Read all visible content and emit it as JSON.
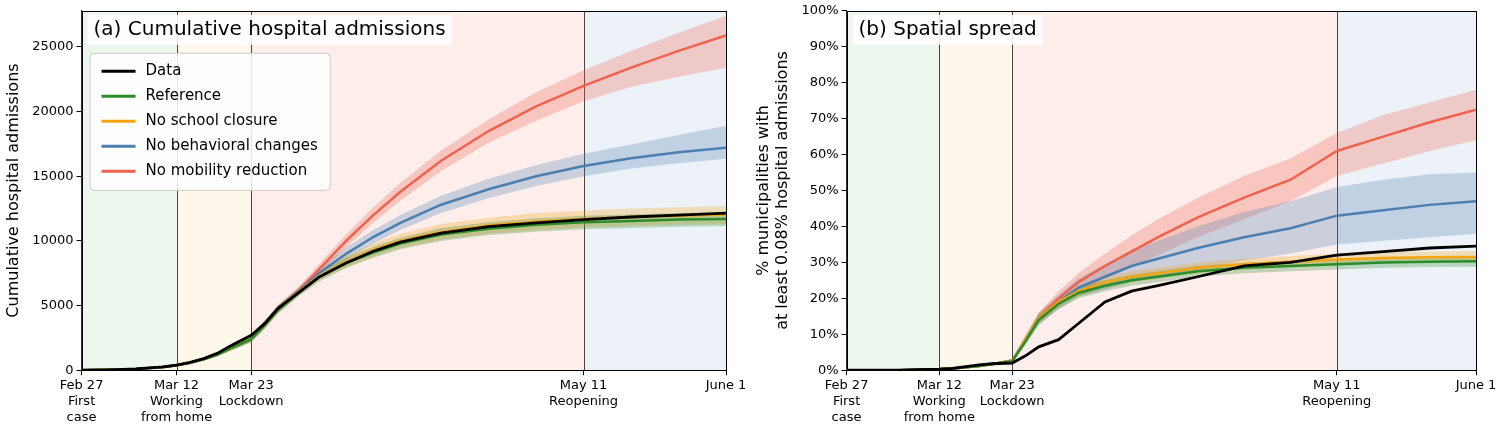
{
  "chart_data": [
    {
      "type": "line",
      "title": "(a) Cumulative hospital admissions",
      "y_label": "Cumulative hospital admissions",
      "x": [
        0,
        4,
        8,
        12,
        14,
        16,
        18,
        20,
        22,
        25,
        27,
        29,
        32,
        35,
        39,
        43,
        47,
        53,
        60,
        67,
        74,
        81,
        88,
        95
      ],
      "xlim": [
        0,
        95
      ],
      "xticks": [
        {
          "value": 0,
          "label": "Feb 27\nFirst\ncase"
        },
        {
          "value": 14,
          "label": "Mar 12\nWorking\nfrom home"
        },
        {
          "value": 25,
          "label": "Mar 23\nLockdown"
        },
        {
          "value": 74,
          "label": "May 11\nReopening"
        },
        {
          "value": 95,
          "label": "June 1"
        }
      ],
      "ylim": [
        0,
        27800
      ],
      "yticks": [
        0,
        5000,
        10000,
        15000,
        20000,
        25000
      ],
      "grid": false,
      "legend": "upper left",
      "vlines": [
        14,
        25,
        74
      ],
      "phases": [
        {
          "from": 0,
          "to": 14,
          "color": "#eef7ee"
        },
        {
          "from": 14,
          "to": 25,
          "color": "#fdf7ec"
        },
        {
          "from": 25,
          "to": 74,
          "color": "#fdeeec"
        },
        {
          "from": 74,
          "to": 95,
          "color": "#edf2f8"
        }
      ],
      "series": [
        {
          "name": "Data",
          "color": "#000000",
          "values": [
            0,
            30,
            100,
            250,
            400,
            600,
            900,
            1300,
            1900,
            2700,
            3600,
            4800,
            6000,
            7200,
            8300,
            9200,
            9900,
            10600,
            11100,
            11400,
            11650,
            11850,
            12000,
            12150
          ]
        },
        {
          "name": "Reference",
          "color": "#2a8c2a",
          "values": [
            0,
            30,
            90,
            230,
            380,
            570,
            850,
            1200,
            1700,
            2400,
            3500,
            4700,
            6000,
            7200,
            8300,
            9100,
            9800,
            10500,
            10950,
            11250,
            11450,
            11550,
            11650,
            11700
          ],
          "lower": [
            0,
            20,
            70,
            190,
            320,
            490,
            740,
            1050,
            1500,
            2150,
            3200,
            4400,
            5700,
            6850,
            7900,
            8700,
            9350,
            10000,
            10450,
            10700,
            10900,
            11000,
            11100,
            11150
          ],
          "upper": [
            0,
            40,
            110,
            270,
            440,
            650,
            960,
            1350,
            1900,
            2650,
            3800,
            5000,
            6300,
            7550,
            8700,
            9550,
            10250,
            11000,
            11450,
            11750,
            11950,
            12050,
            12150,
            12200
          ]
        },
        {
          "name": "No school closure",
          "color": "#f5a511",
          "values": [
            0,
            30,
            95,
            240,
            390,
            580,
            860,
            1220,
            1730,
            2450,
            3550,
            4750,
            6050,
            7300,
            8400,
            9300,
            10000,
            10700,
            11200,
            11500,
            11700,
            11850,
            11950,
            12050
          ],
          "lower": [
            0,
            20,
            75,
            200,
            330,
            500,
            750,
            1070,
            1530,
            2200,
            3250,
            4450,
            5750,
            6950,
            7950,
            8800,
            9450,
            10100,
            10550,
            10850,
            11050,
            11150,
            11250,
            11300
          ],
          "upper": [
            0,
            40,
            115,
            280,
            450,
            660,
            970,
            1370,
            1930,
            2700,
            3850,
            5050,
            6350,
            7650,
            8850,
            9800,
            10550,
            11300,
            11800,
            12150,
            12350,
            12500,
            12600,
            12700
          ]
        },
        {
          "name": "No behavioral changes",
          "color": "#4a7fb0",
          "values": [
            0,
            30,
            95,
            240,
            390,
            580,
            860,
            1220,
            1730,
            2450,
            3550,
            4750,
            6100,
            7500,
            9000,
            10300,
            11400,
            12800,
            14000,
            15000,
            15800,
            16400,
            16850,
            17200
          ],
          "lower": [
            0,
            20,
            75,
            200,
            330,
            500,
            750,
            1070,
            1530,
            2200,
            3250,
            4450,
            5800,
            7100,
            8550,
            9800,
            10850,
            12150,
            13300,
            14250,
            15000,
            15600,
            16000,
            16350
          ],
          "upper": [
            0,
            40,
            115,
            280,
            450,
            660,
            970,
            1370,
            1930,
            2700,
            3850,
            5050,
            6400,
            7900,
            9500,
            10850,
            12000,
            13500,
            14800,
            15850,
            16750,
            17450,
            18200,
            18900
          ]
        },
        {
          "name": "No mobility reduction",
          "color": "#f0624d",
          "values": [
            0,
            30,
            95,
            240,
            390,
            580,
            860,
            1220,
            1730,
            2450,
            3550,
            4750,
            6150,
            7800,
            10000,
            12000,
            13800,
            16200,
            18500,
            20400,
            22000,
            23400,
            24700,
            25900
          ],
          "lower": [
            0,
            20,
            75,
            200,
            330,
            500,
            750,
            1070,
            1530,
            2200,
            3250,
            4450,
            5850,
            7400,
            9500,
            11400,
            13100,
            15400,
            17600,
            19300,
            20800,
            21900,
            22700,
            23400
          ],
          "upper": [
            0,
            40,
            115,
            280,
            450,
            660,
            970,
            1370,
            1930,
            2700,
            3850,
            5050,
            6450,
            8200,
            10500,
            12600,
            14500,
            17000,
            19400,
            21500,
            23200,
            24700,
            26100,
            27400
          ]
        }
      ]
    },
    {
      "type": "line",
      "title": "(b) Spatial spread",
      "y_label": "% municipalities with\nat least 0.08% hospital admissions",
      "x": [
        0,
        4,
        8,
        12,
        14,
        16,
        18,
        20,
        22,
        25,
        27,
        29,
        32,
        35,
        39,
        43,
        47,
        53,
        60,
        67,
        74,
        81,
        88,
        95
      ],
      "xlim": [
        0,
        95
      ],
      "xticks": [
        {
          "value": 0,
          "label": "Feb 27\nFirst\ncase"
        },
        {
          "value": 14,
          "label": "Mar 12\nWorking\nfrom home"
        },
        {
          "value": 25,
          "label": "Mar 23\nLockdown"
        },
        {
          "value": 74,
          "label": "May 11\nReopening"
        },
        {
          "value": 95,
          "label": "June 1"
        }
      ],
      "ylim": [
        0,
        100
      ],
      "yticks": [
        {
          "value": 0,
          "label": "0%"
        },
        {
          "value": 10,
          "label": "10%"
        },
        {
          "value": 20,
          "label": "20%"
        },
        {
          "value": 30,
          "label": "30%"
        },
        {
          "value": 40,
          "label": "40%"
        },
        {
          "value": 50,
          "label": "50%"
        },
        {
          "value": 60,
          "label": "60%"
        },
        {
          "value": 70,
          "label": "70%"
        },
        {
          "value": 80,
          "label": "80%"
        },
        {
          "value": 90,
          "label": "90%"
        },
        {
          "value": 100,
          "label": "100%"
        }
      ],
      "grid": false,
      "vlines": [
        14,
        25,
        74
      ],
      "phases": [
        {
          "from": 0,
          "to": 14,
          "color": "#eef7ee"
        },
        {
          "from": 14,
          "to": 25,
          "color": "#fdf7ec"
        },
        {
          "from": 25,
          "to": 74,
          "color": "#fdeeec"
        },
        {
          "from": 74,
          "to": 95,
          "color": "#edf2f8"
        }
      ],
      "series": [
        {
          "name": "Data",
          "color": "#000000",
          "values": [
            0,
            0,
            0,
            0.2,
            0.3,
            0.5,
            1,
            1.5,
            1.8,
            2,
            4,
            6.5,
            8.5,
            13,
            19,
            22,
            23.5,
            26,
            29,
            30,
            32,
            33,
            34,
            34.5
          ]
        },
        {
          "name": "Reference",
          "color": "#2a8c2a",
          "values": [
            0,
            0,
            0,
            0.2,
            0.3,
            0.5,
            0.8,
            1.2,
            1.7,
            2.5,
            8,
            14,
            18.5,
            21.5,
            23.5,
            25,
            26,
            27.5,
            28.5,
            29,
            29.5,
            30,
            30.2,
            30.3
          ],
          "lower": [
            0,
            0,
            0,
            0.1,
            0.2,
            0.3,
            0.6,
            1,
            1.4,
            2,
            7,
            12.5,
            17,
            20,
            22,
            23.5,
            24.5,
            26,
            27,
            27.5,
            28,
            28.5,
            28.7,
            28.8
          ],
          "upper": [
            0,
            0,
            0,
            0.3,
            0.4,
            0.7,
            1,
            1.5,
            2,
            3,
            9,
            15.5,
            20,
            23,
            25,
            26.5,
            27.5,
            29,
            30,
            30.5,
            31,
            31.5,
            31.7,
            31.8
          ]
        },
        {
          "name": "No school closure",
          "color": "#f5a511",
          "values": [
            0,
            0,
            0,
            0.2,
            0.3,
            0.5,
            0.8,
            1.2,
            1.7,
            2.6,
            8.5,
            14.5,
            19,
            22,
            24.5,
            26,
            27,
            28.5,
            29.5,
            30.2,
            30.8,
            31.2,
            31.4,
            31.5
          ],
          "lower": [
            0,
            0,
            0,
            0.1,
            0.2,
            0.3,
            0.6,
            1,
            1.4,
            2.1,
            7.5,
            13,
            17.5,
            20.5,
            23,
            24.5,
            25.5,
            27,
            28,
            28.7,
            29.3,
            29.7,
            29.9,
            30
          ],
          "upper": [
            0,
            0,
            0,
            0.3,
            0.4,
            0.7,
            1,
            1.5,
            2,
            3.1,
            9.5,
            16,
            20.5,
            23.5,
            26,
            27.5,
            28.5,
            30,
            31,
            31.8,
            32.4,
            32.8,
            33,
            33.2
          ]
        },
        {
          "name": "No behavioral changes",
          "color": "#4a7fb0",
          "values": [
            0,
            0,
            0,
            0.2,
            0.3,
            0.5,
            0.8,
            1.2,
            1.7,
            2.6,
            8.5,
            14.5,
            19,
            23,
            26,
            29,
            31,
            34,
            37,
            39.5,
            43,
            44.5,
            46,
            47
          ],
          "lower": [
            0,
            0,
            0,
            0.1,
            0.2,
            0.3,
            0.6,
            1,
            1.4,
            2.1,
            7.5,
            13,
            17,
            20.5,
            22.5,
            24.5,
            26,
            28,
            30.5,
            32.5,
            35,
            36,
            37,
            38
          ],
          "upper": [
            0,
            0,
            0,
            0.3,
            0.4,
            0.7,
            1,
            1.5,
            2,
            3.1,
            9.5,
            16,
            21,
            25.5,
            29.5,
            33.5,
            36,
            40,
            44,
            47,
            51,
            53,
            54.5,
            55
          ]
        },
        {
          "name": "No mobility reduction",
          "color": "#f0624d",
          "values": [
            0,
            0,
            0,
            0.2,
            0.3,
            0.5,
            0.8,
            1.2,
            1.7,
            2.6,
            8.5,
            14.5,
            20,
            24.5,
            29,
            33,
            37,
            42.5,
            48,
            53,
            61,
            65,
            69,
            72.5
          ],
          "lower": [
            0,
            0,
            0,
            0.1,
            0.2,
            0.3,
            0.6,
            1,
            1.4,
            2.1,
            7.5,
            13,
            18,
            21.5,
            25.5,
            28.5,
            32,
            37,
            42,
            47,
            54,
            57.5,
            61,
            64
          ],
          "upper": [
            0,
            0,
            0,
            0.3,
            0.4,
            0.7,
            1,
            1.5,
            2,
            3.1,
            9.5,
            16,
            22,
            27,
            32.5,
            37.5,
            42,
            48,
            54,
            59,
            66,
            71,
            74.5,
            78
          ]
        }
      ]
    }
  ]
}
